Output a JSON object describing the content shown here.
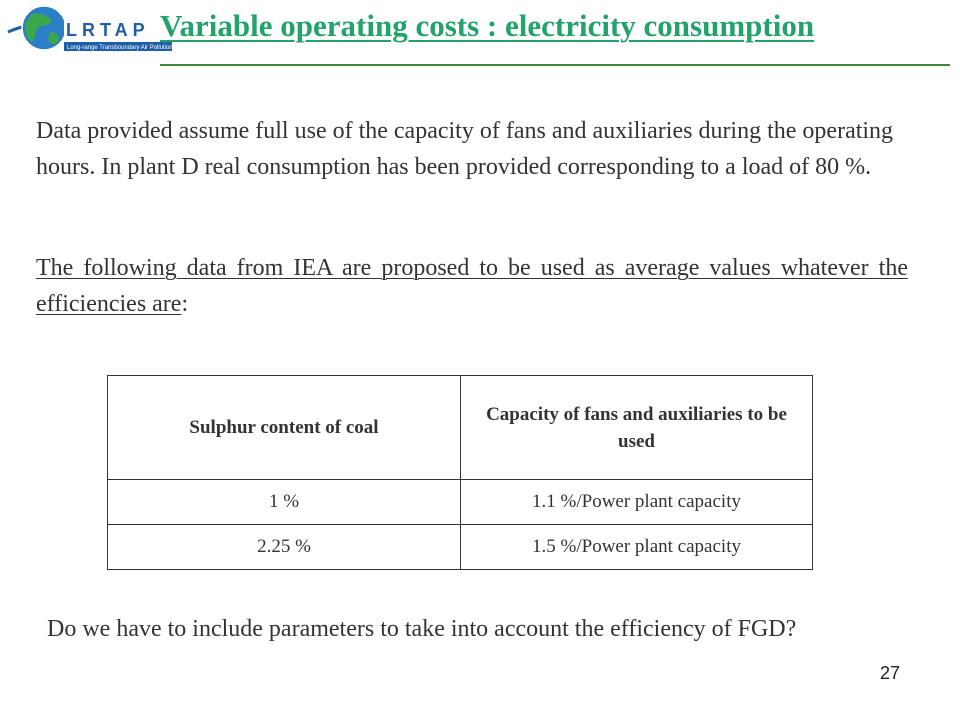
{
  "logo": {
    "brand_text": "LRTAP",
    "tagline": "Long-range Transboundary Air Pollution",
    "icon": "globe-icon"
  },
  "slide": {
    "title": "Variable operating costs : electricity consumption",
    "paragraph1": "Data provided assume full use of the capacity of fans and auxiliaries during the operating hours. In plant D real consumption has been provided corresponding to a load of 80 %.",
    "paragraph2_underlined": "The following data from IEA are proposed to be used as average values whatever the efficiencies are",
    "paragraph2_tail": ":",
    "table": {
      "headers": [
        "Sulphur content of coal",
        "Capacity of fans and auxiliaries to be used"
      ],
      "rows": [
        [
          "1 %",
          "1.1 %/Power plant capacity"
        ],
        [
          "2.25 %",
          "1.5 %/Power plant capacity"
        ]
      ]
    },
    "question": "Do we have to include parameters to take into account the efficiency of FGD?",
    "page_number": "27"
  },
  "colors": {
    "title": "#22a36a",
    "body_text": "#333333",
    "rule": "#3a8a3a",
    "logo_blue": "#1f5fa8",
    "logo_green": "#3aa84a"
  }
}
